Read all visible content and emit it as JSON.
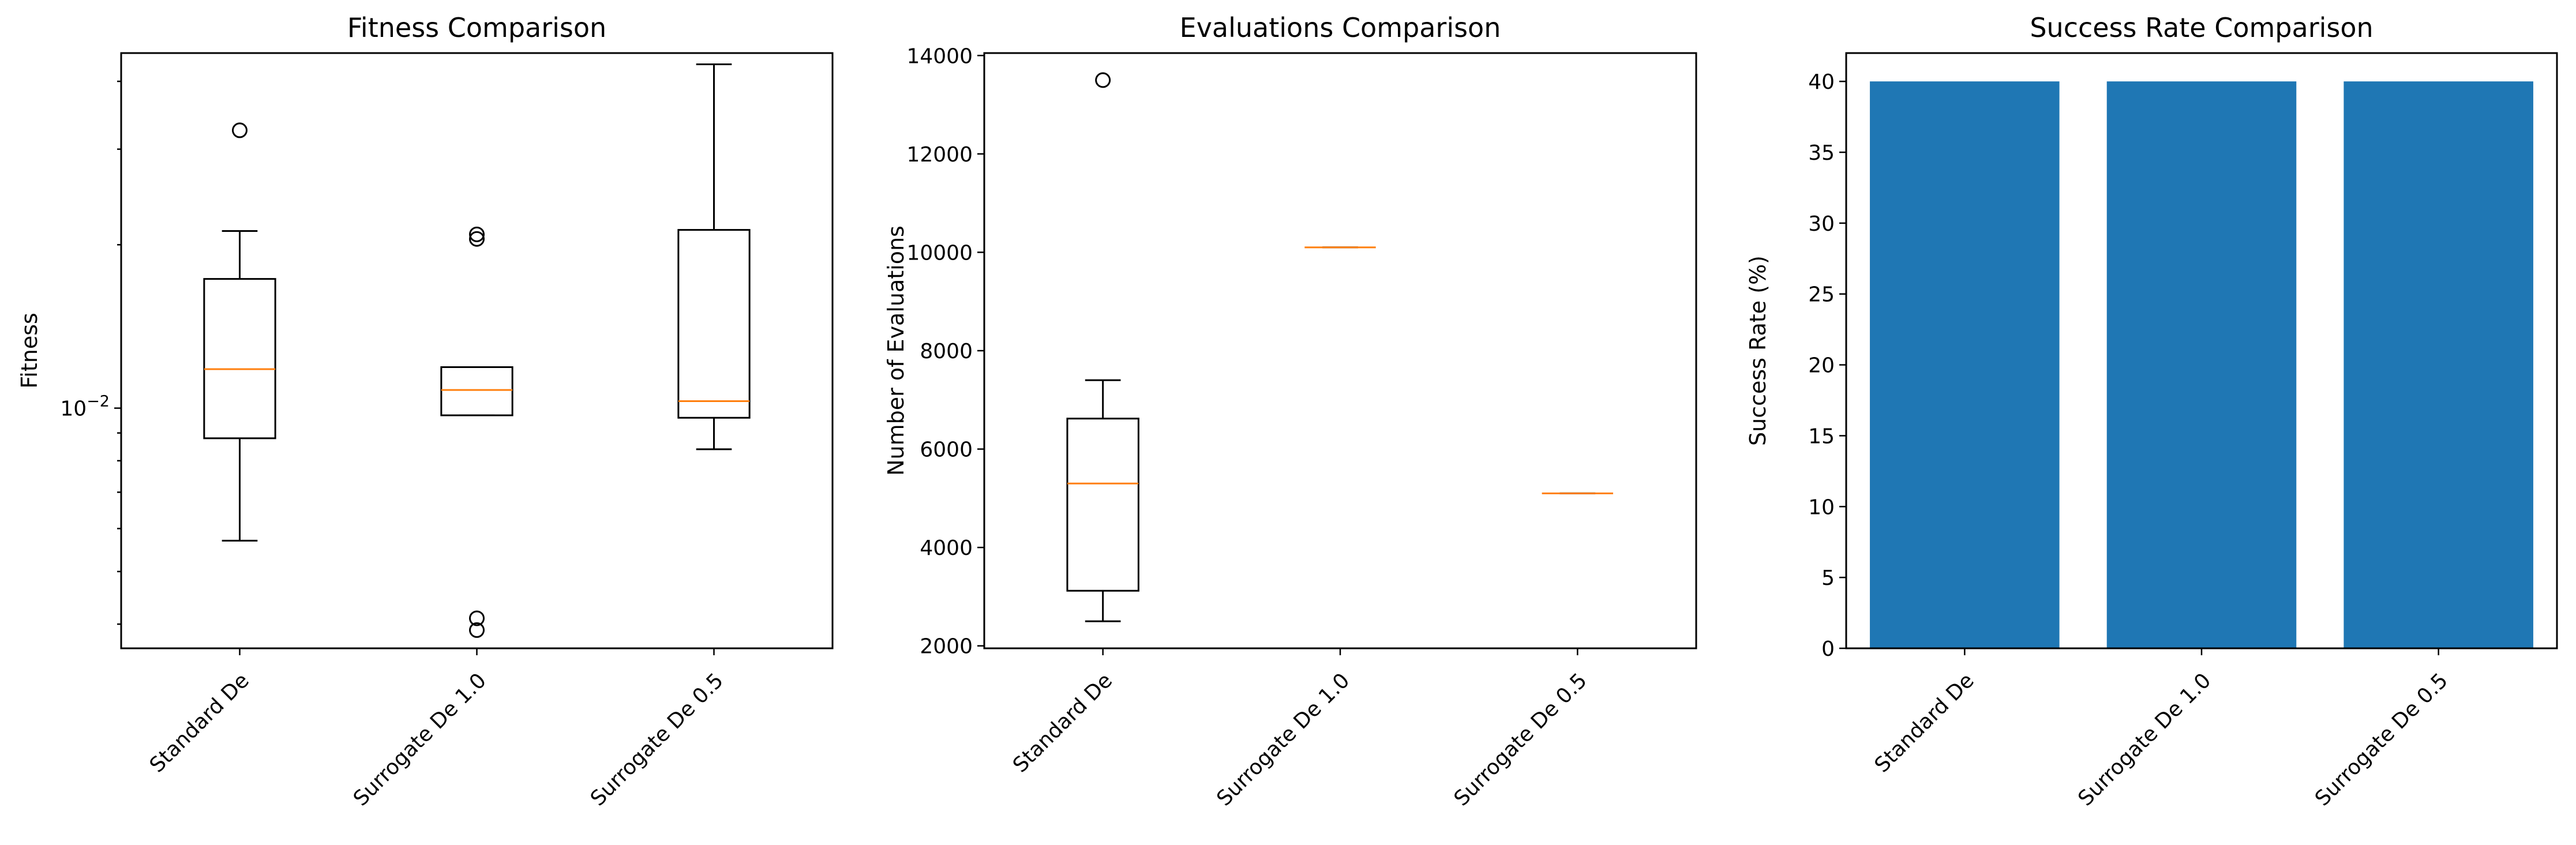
{
  "colors": {
    "bar": "#1f77b4",
    "median": "#ff7f0e",
    "axis": "#000000"
  },
  "chart_data": [
    {
      "type": "box",
      "title": "Fitness Comparison",
      "xlabel": "",
      "ylabel": "Fitness",
      "yscale": "log",
      "ylim": [
        0.00361,
        0.0451
      ],
      "grid": false,
      "categories": [
        "Standard De",
        "Surrogate De 1.0",
        "Surrogate De 0.5"
      ],
      "major_ticks": [
        {
          "value": 0.01,
          "base": "10",
          "exp": "−2"
        }
      ],
      "minor_ticks": [
        0.004,
        0.005,
        0.006,
        0.007,
        0.008,
        0.009,
        0.02,
        0.03,
        0.04
      ],
      "boxes": [
        {
          "whislo": 0.0057,
          "q1": 0.0088,
          "med": 0.0118,
          "q3": 0.0173,
          "whishi": 0.0212,
          "fliers": [
            0.0325
          ]
        },
        {
          "whislo": 0.0097,
          "q1": 0.0097,
          "med": 0.0108,
          "q3": 0.0119,
          "whishi": 0.0119,
          "fliers": [
            0.0205,
            0.0209,
            0.0039,
            0.0041
          ]
        },
        {
          "whislo": 0.0084,
          "q1": 0.0096,
          "med": 0.0103,
          "q3": 0.0213,
          "whishi": 0.043,
          "fliers": []
        }
      ]
    },
    {
      "type": "box",
      "title": "Evaluations Comparison",
      "xlabel": "",
      "ylabel": "Number of Evaluations",
      "yscale": "linear",
      "ylim": [
        1950,
        14050
      ],
      "grid": false,
      "categories": [
        "Standard De",
        "Surrogate De 1.0",
        "Surrogate De 0.5"
      ],
      "yticks": [
        2000,
        4000,
        6000,
        8000,
        10000,
        12000,
        14000
      ],
      "boxes": [
        {
          "whislo": 2500,
          "q1": 3120,
          "med": 5300,
          "q3": 6620,
          "whishi": 7400,
          "fliers": [
            13500
          ]
        },
        {
          "whislo": 10100,
          "q1": 10100,
          "med": 10100,
          "q3": 10100,
          "whishi": 10100,
          "fliers": []
        },
        {
          "whislo": 5100,
          "q1": 5100,
          "med": 5100,
          "q3": 5100,
          "whishi": 5100,
          "fliers": []
        }
      ]
    },
    {
      "type": "bar",
      "title": "Success Rate Comparison",
      "xlabel": "",
      "ylabel": "Success Rate (%)",
      "ylim": [
        0,
        42
      ],
      "grid": false,
      "categories": [
        "Standard De",
        "Surrogate De 1.0",
        "Surrogate De 0.5"
      ],
      "yticks": [
        0,
        5,
        10,
        15,
        20,
        25,
        30,
        35,
        40
      ],
      "values": [
        40,
        40,
        40
      ]
    }
  ]
}
